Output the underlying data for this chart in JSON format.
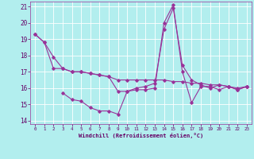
{
  "xlabel": "Windchill (Refroidissement éolien,°C)",
  "background_color": "#b2eeee",
  "grid_color": "#ffffff",
  "line_color": "#993399",
  "xlim": [
    -0.5,
    23.5
  ],
  "ylim": [
    13.8,
    21.3
  ],
  "yticks": [
    14,
    15,
    16,
    17,
    18,
    19,
    20,
    21
  ],
  "xticks": [
    0,
    1,
    2,
    3,
    4,
    5,
    6,
    7,
    8,
    9,
    10,
    11,
    12,
    13,
    14,
    15,
    16,
    17,
    18,
    19,
    20,
    21,
    22,
    23
  ],
  "line1_x": [
    0,
    1,
    2,
    3,
    4,
    5,
    6,
    7,
    8,
    9,
    10,
    11,
    12,
    13,
    14,
    15,
    16,
    17,
    18,
    19,
    20,
    21,
    22,
    23
  ],
  "line1_y": [
    19.3,
    18.8,
    17.9,
    17.2,
    17.0,
    17.0,
    16.9,
    16.8,
    16.7,
    16.5,
    16.5,
    16.5,
    16.5,
    16.5,
    16.5,
    16.4,
    16.4,
    16.3,
    16.3,
    16.2,
    16.2,
    16.1,
    16.0,
    16.1
  ],
  "line2_x": [
    0,
    1,
    2,
    3,
    4,
    5,
    6,
    7,
    8,
    9,
    10,
    11,
    12,
    13,
    14,
    15,
    16,
    17,
    18,
    19,
    20,
    21,
    22,
    23
  ],
  "line2_y": [
    19.3,
    18.8,
    17.2,
    17.2,
    17.0,
    17.0,
    16.9,
    16.8,
    16.7,
    15.8,
    15.8,
    16.0,
    16.1,
    16.3,
    19.6,
    20.9,
    17.4,
    16.5,
    16.2,
    16.0,
    16.2,
    16.1,
    15.9,
    16.1
  ],
  "line3_x": [
    3,
    4,
    5,
    6,
    7,
    8,
    9,
    10,
    11,
    12,
    13,
    14,
    15,
    16,
    17,
    18,
    19,
    20,
    21,
    22,
    23
  ],
  "line3_y": [
    15.7,
    15.3,
    15.2,
    14.8,
    14.6,
    14.6,
    14.4,
    15.8,
    15.9,
    15.9,
    16.0,
    20.0,
    21.1,
    17.0,
    15.1,
    16.1,
    16.1,
    15.9,
    16.1,
    15.9,
    16.1
  ]
}
